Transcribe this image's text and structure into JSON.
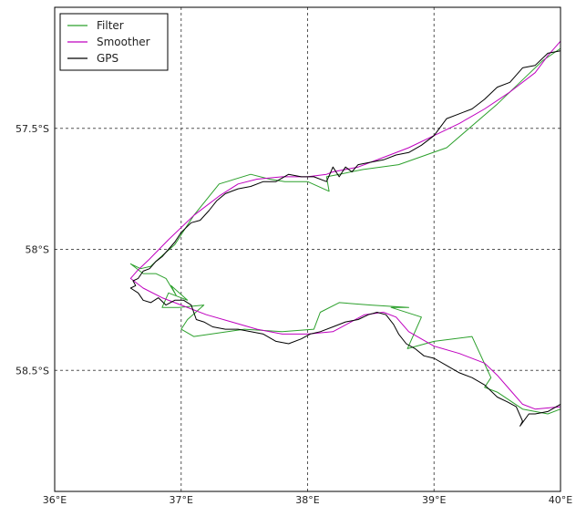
{
  "chart_data": {
    "type": "line",
    "title": "",
    "xlabel": "",
    "ylabel": "",
    "xlim": [
      36,
      40
    ],
    "ylim": [
      -59.0,
      -57.0
    ],
    "grid": true,
    "legend": {
      "placement": "top-left"
    },
    "x_ticks": [
      {
        "value": 36,
        "label": "36°E"
      },
      {
        "value": 37,
        "label": "37°E"
      },
      {
        "value": 38,
        "label": "38°E"
      },
      {
        "value": 39,
        "label": "39°E"
      },
      {
        "value": 40,
        "label": "40°E"
      }
    ],
    "y_ticks": [
      {
        "value": -57.5,
        "label": "57.5°S"
      },
      {
        "value": -58.0,
        "label": "58°S"
      },
      {
        "value": -58.5,
        "label": "58.5°S"
      }
    ],
    "series": [
      {
        "name": "Filter",
        "color": "#2ca02c",
        "x": [
          40.0,
          39.86,
          39.74,
          39.5,
          39.1,
          38.72,
          38.44,
          38.25,
          38.15,
          38.17,
          38.0,
          37.82,
          37.7,
          37.55,
          37.3,
          37.1,
          36.95,
          36.82,
          36.76,
          36.68,
          36.6,
          36.7,
          36.8,
          36.88,
          36.96,
          36.92,
          37.05,
          36.9,
          36.85,
          36.98,
          37.18,
          37.05,
          37.0,
          37.1,
          37.5,
          37.8,
          38.05,
          38.1,
          38.25,
          38.5,
          38.8,
          38.66,
          38.9,
          38.79,
          39.0,
          39.3,
          39.45,
          39.4,
          39.5,
          39.7,
          39.9,
          40.0
        ],
        "y": [
          -57.17,
          -57.22,
          -57.28,
          -57.4,
          -57.58,
          -57.65,
          -57.67,
          -57.69,
          -57.7,
          -57.76,
          -57.72,
          -57.72,
          -57.71,
          -57.69,
          -57.73,
          -57.86,
          -57.98,
          -58.04,
          -58.07,
          -58.08,
          -58.06,
          -58.1,
          -58.1,
          -58.12,
          -58.19,
          -58.15,
          -58.21,
          -58.18,
          -58.24,
          -58.24,
          -58.23,
          -58.29,
          -58.33,
          -58.36,
          -58.33,
          -58.34,
          -58.33,
          -58.26,
          -58.22,
          -58.23,
          -58.24,
          -58.24,
          -58.28,
          -58.41,
          -58.38,
          -58.36,
          -58.53,
          -58.57,
          -58.59,
          -58.66,
          -58.68,
          -58.66
        ]
      },
      {
        "name": "Smoother",
        "color": "#bf00bf",
        "x": [
          40.0,
          39.9,
          39.8,
          39.6,
          39.4,
          39.2,
          39.0,
          38.8,
          38.6,
          38.4,
          38.2,
          38.15,
          38.0,
          37.8,
          37.6,
          37.45,
          37.3,
          37.1,
          36.9,
          36.75,
          36.65,
          36.6,
          36.7,
          36.85,
          37.0,
          37.2,
          37.4,
          37.6,
          37.8,
          38.0,
          38.2,
          38.45,
          38.6,
          38.7,
          38.8,
          39.0,
          39.2,
          39.4,
          39.5,
          39.6,
          39.7,
          39.8,
          40.0
        ],
        "y": [
          -57.14,
          -57.2,
          -57.27,
          -57.35,
          -57.42,
          -57.48,
          -57.53,
          -57.58,
          -57.62,
          -57.66,
          -57.68,
          -57.69,
          -57.7,
          -57.7,
          -57.71,
          -57.73,
          -57.78,
          -57.86,
          -57.96,
          -58.04,
          -58.09,
          -58.12,
          -58.16,
          -58.2,
          -58.23,
          -58.27,
          -58.3,
          -58.33,
          -58.35,
          -58.35,
          -58.34,
          -58.27,
          -58.26,
          -58.28,
          -58.34,
          -58.4,
          -58.43,
          -58.47,
          -58.52,
          -58.58,
          -58.64,
          -58.66,
          -58.65
        ]
      },
      {
        "name": "GPS",
        "color": "#000000",
        "x": [
          40.0,
          39.9,
          39.8,
          39.7,
          39.6,
          39.5,
          39.4,
          39.3,
          39.2,
          39.1,
          39.0,
          38.9,
          38.8,
          38.7,
          38.6,
          38.5,
          38.4,
          38.35,
          38.3,
          38.25,
          38.2,
          38.15,
          38.05,
          37.95,
          37.85,
          37.75,
          37.65,
          37.55,
          37.45,
          37.35,
          37.28,
          37.22,
          37.15,
          37.08,
          37.0,
          36.95,
          36.9,
          36.85,
          36.8,
          36.75,
          36.7,
          36.66,
          36.62,
          36.64,
          36.6,
          36.66,
          36.7,
          36.76,
          36.82,
          36.88,
          36.95,
          37.02,
          37.08,
          37.12,
          37.18,
          37.25,
          37.35,
          37.45,
          37.55,
          37.65,
          37.75,
          37.85,
          37.95,
          38.02,
          38.1,
          38.2,
          38.3,
          38.4,
          38.48,
          38.55,
          38.62,
          38.68,
          38.72,
          38.78,
          38.85,
          38.92,
          39.0,
          39.1,
          39.2,
          39.3,
          39.4,
          39.5,
          39.58,
          39.65,
          39.7,
          39.68,
          39.75,
          39.8,
          39.9,
          40.0
        ],
        "y": [
          -57.18,
          -57.19,
          -57.24,
          -57.25,
          -57.31,
          -57.33,
          -57.38,
          -57.42,
          -57.44,
          -57.46,
          -57.53,
          -57.57,
          -57.6,
          -57.61,
          -57.63,
          -57.64,
          -57.65,
          -57.68,
          -57.66,
          -57.7,
          -57.66,
          -57.72,
          -57.7,
          -57.7,
          -57.69,
          -57.72,
          -57.72,
          -57.74,
          -57.75,
          -57.77,
          -57.8,
          -57.84,
          -57.88,
          -57.89,
          -57.93,
          -57.97,
          -58.0,
          -58.03,
          -58.05,
          -58.08,
          -58.09,
          -58.12,
          -58.13,
          -58.15,
          -58.16,
          -58.18,
          -58.21,
          -58.22,
          -58.2,
          -58.23,
          -58.21,
          -58.21,
          -58.23,
          -58.29,
          -58.3,
          -58.32,
          -58.33,
          -58.33,
          -58.34,
          -58.35,
          -58.38,
          -58.39,
          -58.37,
          -58.35,
          -58.34,
          -58.32,
          -58.3,
          -58.29,
          -58.27,
          -58.26,
          -58.27,
          -58.31,
          -58.35,
          -58.39,
          -58.41,
          -58.44,
          -58.45,
          -58.48,
          -58.51,
          -58.53,
          -58.56,
          -58.61,
          -58.63,
          -58.65,
          -58.71,
          -58.73,
          -58.68,
          -58.68,
          -58.67,
          -58.64
        ]
      }
    ]
  }
}
